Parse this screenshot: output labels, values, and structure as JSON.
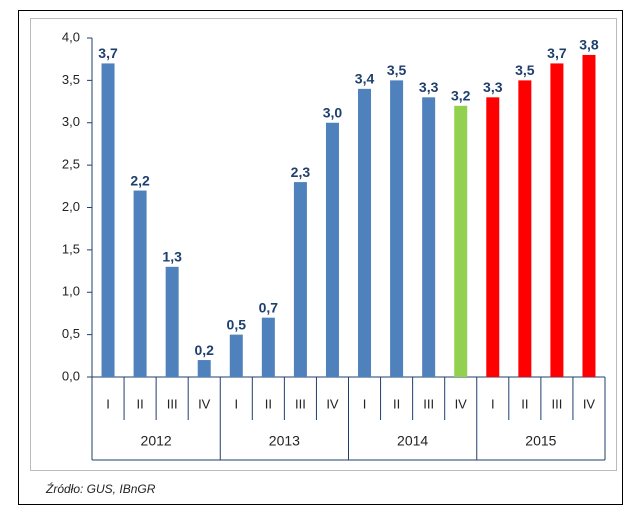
{
  "chart_data": {
    "type": "bar",
    "categories": [
      "I",
      "II",
      "III",
      "IV",
      "I",
      "II",
      "III",
      "IV",
      "I",
      "II",
      "III",
      "IV",
      "I",
      "II",
      "III",
      "IV"
    ],
    "groups": [
      "2012",
      "2013",
      "2014",
      "2015"
    ],
    "values": [
      3.7,
      2.2,
      1.3,
      0.2,
      0.5,
      0.7,
      2.3,
      3.0,
      3.4,
      3.5,
      3.3,
      3.2,
      3.3,
      3.5,
      3.7,
      3.8
    ],
    "value_labels": [
      "3,7",
      "2,2",
      "1,3",
      "0,2",
      "0,5",
      "0,7",
      "2,3",
      "3,0",
      "3,4",
      "3,5",
      "3,3",
      "3,2",
      "3,3",
      "3,5",
      "3,7",
      "3,8"
    ],
    "colors": [
      "#4f81bd",
      "#4f81bd",
      "#4f81bd",
      "#4f81bd",
      "#4f81bd",
      "#4f81bd",
      "#4f81bd",
      "#4f81bd",
      "#4f81bd",
      "#4f81bd",
      "#4f81bd",
      "#92d050",
      "#ff0000",
      "#ff0000",
      "#ff0000",
      "#ff0000"
    ],
    "ylim": [
      0,
      4
    ],
    "yticks": [
      {
        "value": 0,
        "label": "0,0"
      },
      {
        "value": 0.5,
        "label": "0,5"
      },
      {
        "value": 1,
        "label": "1,0"
      },
      {
        "value": 1.5,
        "label": "1,5"
      },
      {
        "value": 2,
        "label": "2,0"
      },
      {
        "value": 2.5,
        "label": "2,5"
      },
      {
        "value": 3,
        "label": "3,0"
      },
      {
        "value": 3.5,
        "label": "3,5"
      },
      {
        "value": 4,
        "label": "4,0"
      }
    ],
    "source": "Źródło: GUS, IBnGR"
  }
}
